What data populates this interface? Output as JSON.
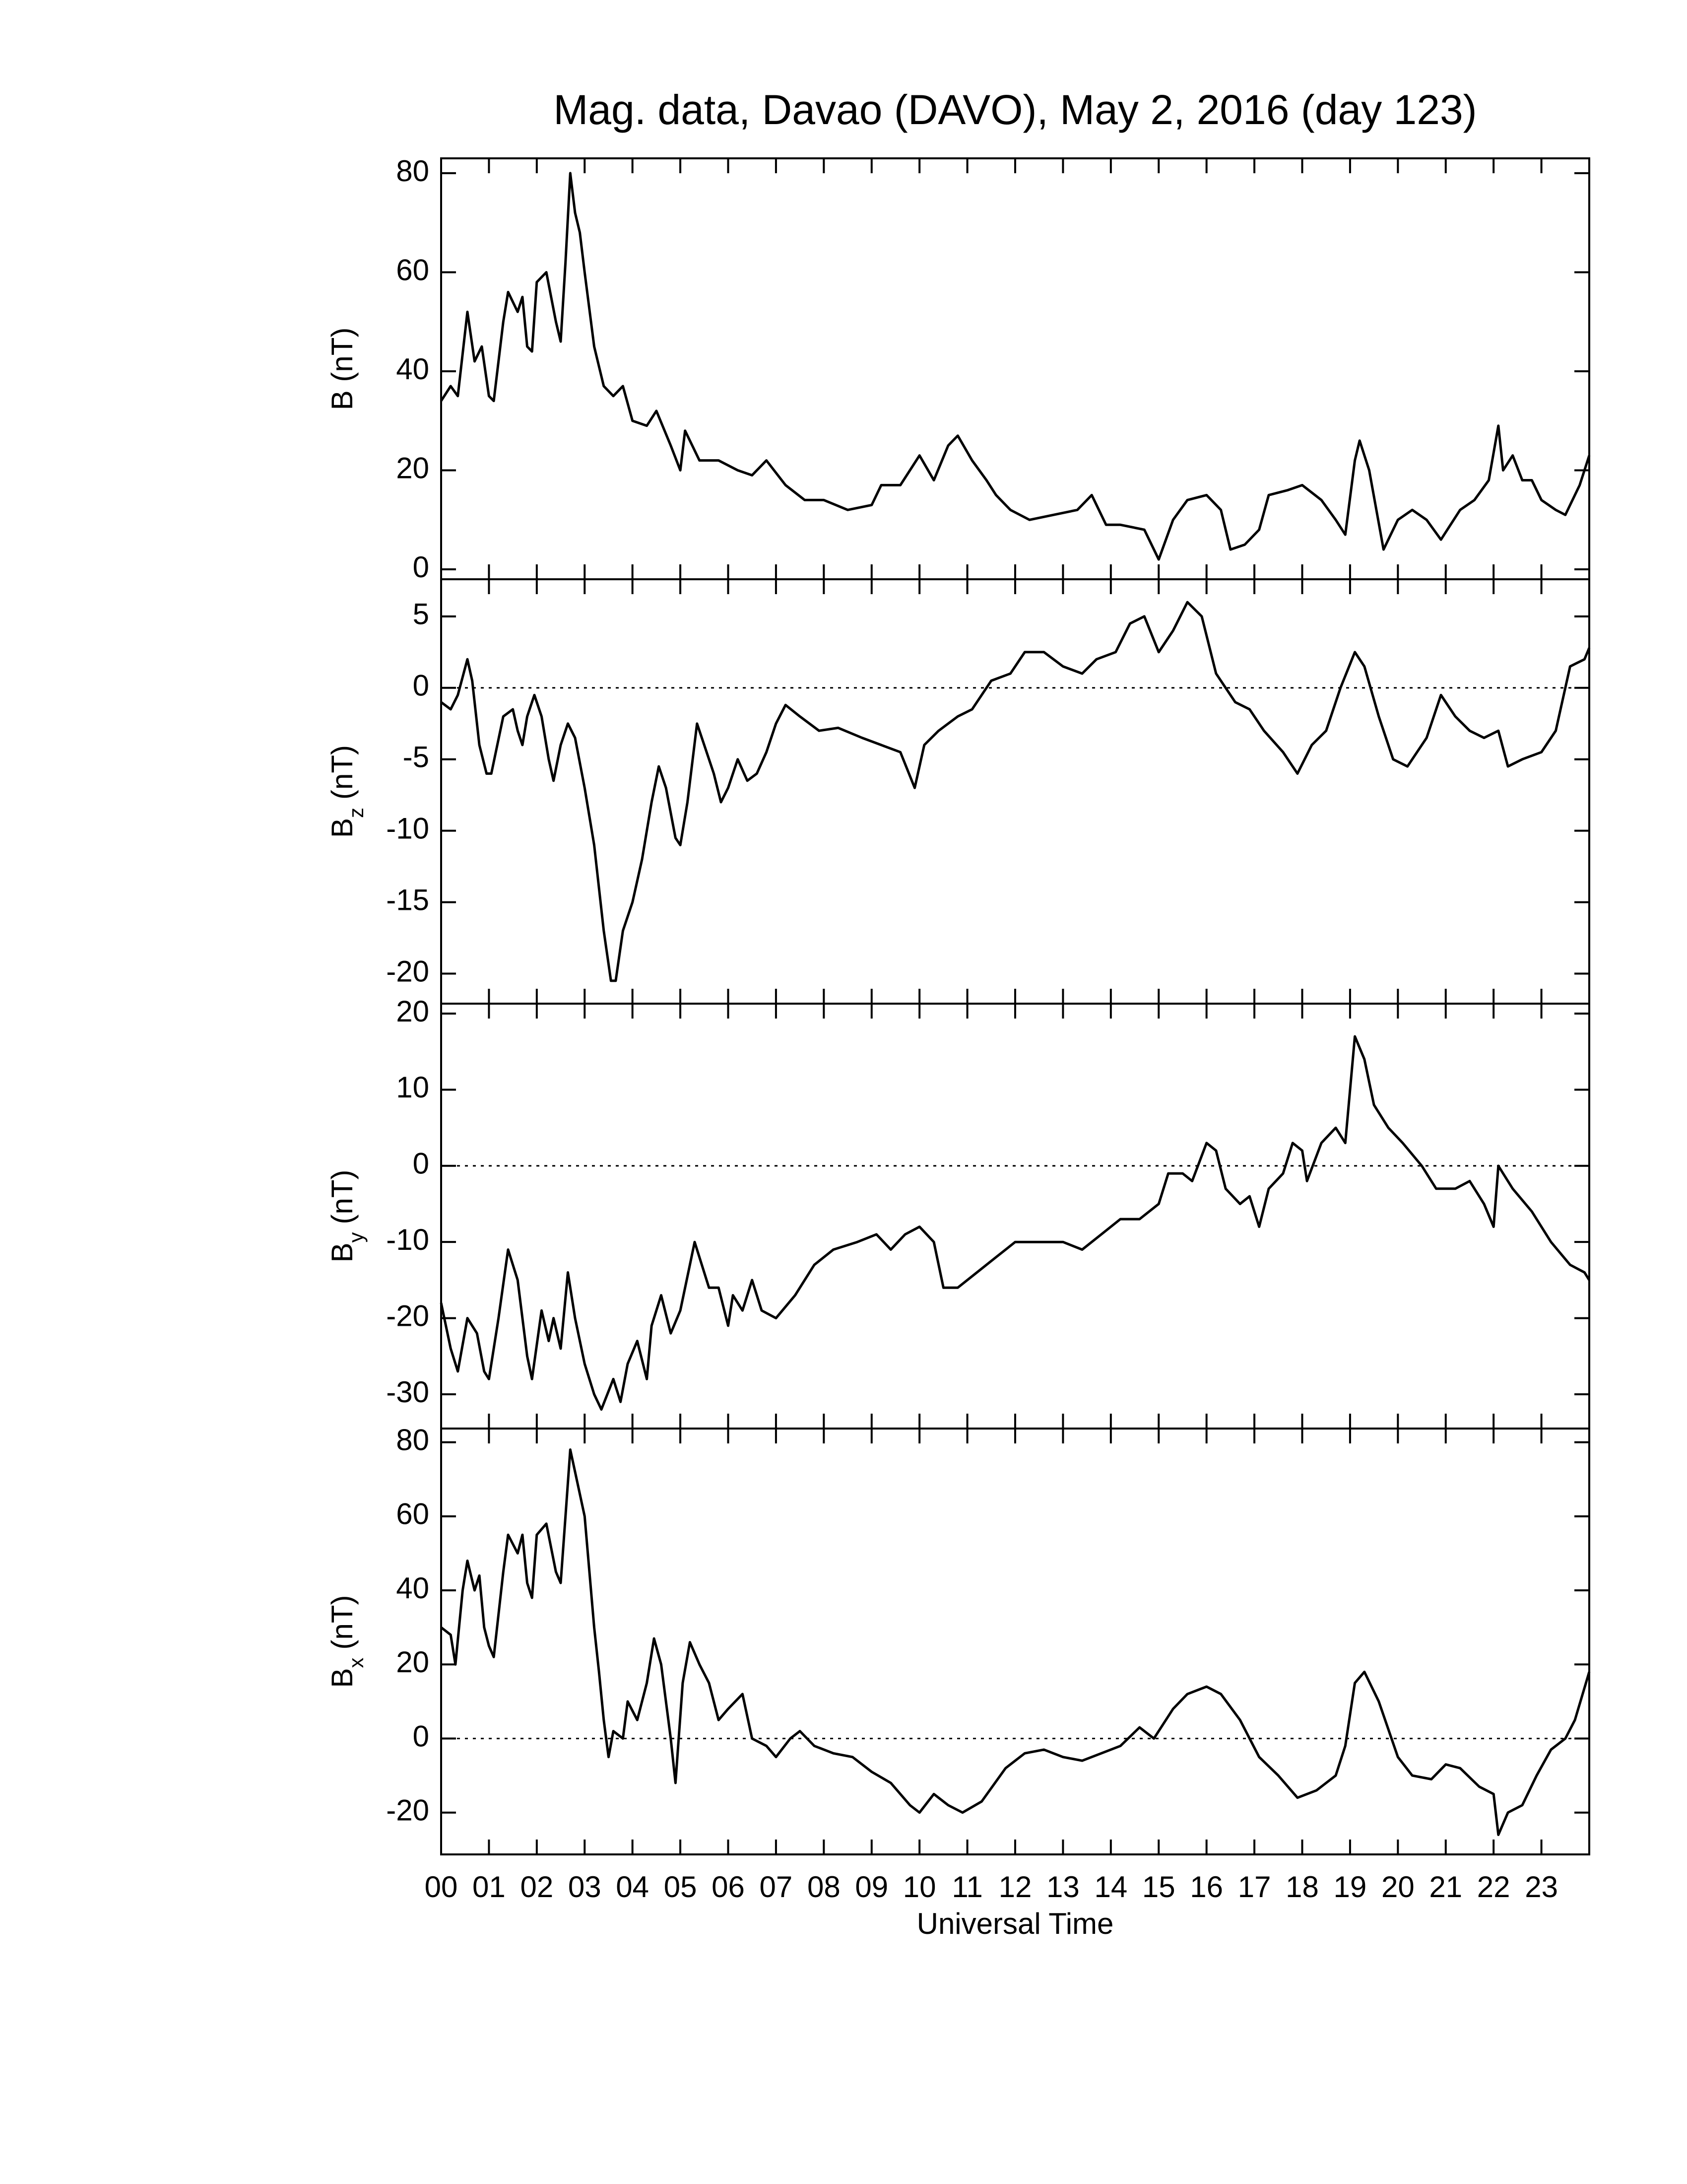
{
  "chart_data": [
    {
      "type": "line",
      "title": "Mag. data, Davao (DAVO), May 2, 2016 (day 123)",
      "ylabel": "B (nT)",
      "color": "#000000",
      "xlim": [
        0,
        24
      ],
      "xticks": [
        0,
        1,
        2,
        3,
        4,
        5,
        6,
        7,
        8,
        9,
        10,
        11,
        12,
        13,
        14,
        15,
        16,
        17,
        18,
        19,
        20,
        21,
        22,
        23
      ],
      "ylim": [
        -2,
        83
      ],
      "yticks": [
        0,
        20,
        40,
        60,
        80
      ],
      "x": [
        0,
        0.2,
        0.35,
        0.55,
        0.7,
        0.85,
        1,
        1.1,
        1.3,
        1.4,
        1.6,
        1.7,
        1.8,
        1.9,
        2,
        2.2,
        2.4,
        2.5,
        2.6,
        2.7,
        2.8,
        2.9,
        3,
        3.2,
        3.4,
        3.6,
        3.8,
        4,
        4.3,
        4.5,
        4.8,
        5,
        5.1,
        5.4,
        5.8,
        6.2,
        6.5,
        6.8,
        7.2,
        7.6,
        8,
        8.5,
        9,
        9.2,
        9.6,
        10,
        10.3,
        10.6,
        10.8,
        11.1,
        11.4,
        11.6,
        11.9,
        12.3,
        12.8,
        13.3,
        13.6,
        13.9,
        14.2,
        14.7,
        15,
        15.3,
        15.6,
        16,
        16.3,
        16.5,
        16.8,
        17.1,
        17.3,
        17.7,
        18,
        18.4,
        18.7,
        18.9,
        19.1,
        19.2,
        19.4,
        19.7,
        20,
        20.3,
        20.6,
        20.9,
        21.3,
        21.6,
        21.9,
        22.1,
        22.2,
        22.4,
        22.6,
        22.8,
        23,
        23.3,
        23.5,
        23.8,
        24
      ],
      "values": [
        34,
        37,
        35,
        52,
        42,
        45,
        35,
        34,
        50,
        56,
        52,
        55,
        45,
        44,
        58,
        60,
        50,
        46,
        62,
        80,
        72,
        68,
        60,
        45,
        37,
        35,
        37,
        30,
        29,
        32,
        25,
        20,
        28,
        22,
        22,
        20,
        19,
        22,
        17,
        14,
        14,
        12,
        13,
        17,
        17,
        23,
        18,
        25,
        27,
        22,
        18,
        15,
        12,
        10,
        11,
        12,
        15,
        9,
        9,
        8,
        2,
        10,
        14,
        15,
        12,
        4,
        5,
        8,
        15,
        16,
        17,
        14,
        10,
        7,
        22,
        26,
        20,
        4,
        10,
        12,
        10,
        6,
        12,
        14,
        18,
        29,
        20,
        23,
        18,
        18,
        14,
        12,
        11,
        17,
        23
      ]
    },
    {
      "type": "line",
      "ylabel": "B",
      "ylabel_subscript": "z",
      "ylabel_unit": "(nT)",
      "color": "#000000",
      "reference_line": 0,
      "xlim": [
        0,
        24
      ],
      "xticks": [
        0,
        1,
        2,
        3,
        4,
        5,
        6,
        7,
        8,
        9,
        10,
        11,
        12,
        13,
        14,
        15,
        16,
        17,
        18,
        19,
        20,
        21,
        22,
        23
      ],
      "ylim": [
        -22.1,
        7.6
      ],
      "yticks": [
        -20,
        -15,
        -10,
        -5,
        0,
        5
      ],
      "x": [
        0,
        0.2,
        0.35,
        0.55,
        0.65,
        0.8,
        0.95,
        1.05,
        1.3,
        1.5,
        1.6,
        1.7,
        1.8,
        1.95,
        2.1,
        2.25,
        2.35,
        2.5,
        2.65,
        2.8,
        3,
        3.2,
        3.4,
        3.55,
        3.65,
        3.8,
        4,
        4.2,
        4.4,
        4.55,
        4.7,
        4.9,
        5,
        5.15,
        5.35,
        5.5,
        5.7,
        5.85,
        6,
        6.2,
        6.4,
        6.6,
        6.8,
        7,
        7.2,
        7.5,
        7.9,
        8.3,
        8.8,
        9.2,
        9.6,
        9.9,
        10.1,
        10.4,
        10.8,
        11.1,
        11.5,
        11.9,
        12.2,
        12.6,
        13,
        13.4,
        13.7,
        14.1,
        14.4,
        14.7,
        15,
        15.3,
        15.6,
        15.9,
        16.2,
        16.6,
        16.9,
        17.2,
        17.6,
        17.9,
        18.2,
        18.5,
        18.8,
        19.1,
        19.3,
        19.6,
        19.9,
        20.2,
        20.6,
        20.9,
        21.2,
        21.5,
        21.8,
        22.1,
        22.3,
        22.6,
        23,
        23.3,
        23.6,
        23.9,
        24
      ],
      "values": [
        -1,
        -1.5,
        -0.5,
        2,
        0.5,
        -4,
        -6,
        -6,
        -2,
        -1.5,
        -3,
        -4,
        -2,
        -0.5,
        -2,
        -5,
        -6.5,
        -4,
        -2.5,
        -3.5,
        -7,
        -11,
        -17,
        -20.5,
        -20.5,
        -17,
        -15,
        -12,
        -8,
        -5.5,
        -7,
        -10.5,
        -11,
        -8,
        -2.5,
        -4,
        -6,
        -8,
        -7,
        -5,
        -6.5,
        -6,
        -4.5,
        -2.5,
        -1.2,
        -2,
        -3,
        -2.8,
        -3.5,
        -4,
        -4.5,
        -7,
        -4,
        -3,
        -2,
        -1.5,
        0.5,
        1,
        2.5,
        2.5,
        1.5,
        1,
        2,
        2.5,
        4.5,
        5,
        2.5,
        4,
        6,
        5,
        1,
        -1,
        -1.5,
        -3,
        -4.5,
        -6,
        -4,
        -3,
        0,
        2.5,
        1.5,
        -2,
        -5,
        -5.5,
        -3.5,
        -0.5,
        -2,
        -3,
        -3.5,
        -3,
        -5.5,
        -5,
        -4.5,
        -3,
        1.5,
        2,
        2.8
      ]
    },
    {
      "type": "line",
      "ylabel": "B",
      "ylabel_subscript": "y",
      "ylabel_unit": "(nT)",
      "color": "#000000",
      "reference_line": 0,
      "xlim": [
        0,
        24
      ],
      "xticks": [
        0,
        1,
        2,
        3,
        4,
        5,
        6,
        7,
        8,
        9,
        10,
        11,
        12,
        13,
        14,
        15,
        16,
        17,
        18,
        19,
        20,
        21,
        22,
        23
      ],
      "ylim": [
        -34.5,
        21.3
      ],
      "yticks": [
        -30,
        -20,
        -10,
        0,
        10,
        20
      ],
      "x": [
        0,
        0.2,
        0.35,
        0.55,
        0.75,
        0.9,
        1,
        1.2,
        1.4,
        1.6,
        1.8,
        1.9,
        2.1,
        2.25,
        2.35,
        2.5,
        2.65,
        2.8,
        3,
        3.2,
        3.35,
        3.6,
        3.75,
        3.9,
        4.1,
        4.3,
        4.4,
        4.6,
        4.8,
        5,
        5.2,
        5.3,
        5.6,
        5.8,
        6,
        6.1,
        6.3,
        6.5,
        6.7,
        7,
        7.4,
        7.8,
        8.2,
        8.7,
        9.1,
        9.4,
        9.7,
        10,
        10.3,
        10.5,
        10.8,
        11.2,
        11.6,
        12,
        12.5,
        13,
        13.4,
        13.8,
        14.2,
        14.6,
        15,
        15.2,
        15.5,
        15.7,
        16,
        16.2,
        16.4,
        16.7,
        16.9,
        17.1,
        17.3,
        17.6,
        17.8,
        18,
        18.1,
        18.4,
        18.7,
        18.9,
        19.1,
        19.3,
        19.5,
        19.8,
        20.1,
        20.5,
        20.8,
        21.2,
        21.5,
        21.8,
        22,
        22.1,
        22.4,
        22.8,
        23.2,
        23.6,
        23.9,
        24
      ],
      "values": [
        -18,
        -24,
        -27,
        -20,
        -22,
        -27,
        -28,
        -20,
        -11,
        -15,
        -25,
        -28,
        -19,
        -23,
        -20,
        -24,
        -14,
        -20,
        -26,
        -30,
        -32,
        -28,
        -31,
        -26,
        -23,
        -28,
        -21,
        -17,
        -22,
        -19,
        -13,
        -10,
        -16,
        -16,
        -21,
        -17,
        -19,
        -15,
        -19,
        -20,
        -17,
        -13,
        -11,
        -10,
        -9,
        -11,
        -9,
        -8,
        -10,
        -16,
        -16,
        -14,
        -12,
        -10,
        -10,
        -10,
        -11,
        -9,
        -7,
        -7,
        -5,
        -1,
        -1,
        -2,
        3,
        2,
        -3,
        -5,
        -4,
        -8,
        -3,
        -1,
        3,
        2,
        -2,
        3,
        5,
        3,
        17,
        14,
        8,
        5,
        3,
        0,
        -3,
        -3,
        -2,
        -5,
        -8,
        0,
        -3,
        -6,
        -10,
        -13,
        -14,
        -15
      ]
    },
    {
      "type": "line",
      "ylabel": "B",
      "ylabel_subscript": "x",
      "ylabel_unit": "(nT)",
      "xlabel": "Universal Time",
      "color": "#000000",
      "reference_line": 0,
      "xlim": [
        0,
        24
      ],
      "xticks": [
        {
          "value": 0,
          "label": "00"
        },
        {
          "value": 1,
          "label": "01"
        },
        {
          "value": 2,
          "label": "02"
        },
        {
          "value": 3,
          "label": "03"
        },
        {
          "value": 4,
          "label": "04"
        },
        {
          "value": 5,
          "label": "05"
        },
        {
          "value": 6,
          "label": "06"
        },
        {
          "value": 7,
          "label": "07"
        },
        {
          "value": 8,
          "label": "08"
        },
        {
          "value": 9,
          "label": "09"
        },
        10,
        11,
        12,
        13,
        14,
        15,
        16,
        17,
        18,
        19,
        20,
        21,
        22,
        23
      ],
      "ylim": [
        -31.3,
        83.7
      ],
      "yticks": [
        -20,
        0,
        20,
        40,
        60,
        80
      ],
      "x": [
        0,
        0.2,
        0.3,
        0.45,
        0.55,
        0.7,
        0.8,
        0.9,
        1,
        1.1,
        1.3,
        1.4,
        1.6,
        1.7,
        1.8,
        1.9,
        2,
        2.2,
        2.4,
        2.5,
        2.6,
        2.7,
        2.8,
        3,
        3.2,
        3.3,
        3.4,
        3.5,
        3.6,
        3.8,
        3.9,
        4.1,
        4.3,
        4.45,
        4.6,
        4.8,
        4.9,
        5.05,
        5.2,
        5.4,
        5.6,
        5.8,
        6,
        6.3,
        6.5,
        6.8,
        7,
        7.3,
        7.5,
        7.8,
        8.2,
        8.6,
        9,
        9.4,
        9.8,
        10,
        10.3,
        10.6,
        10.9,
        11.3,
        11.8,
        12.2,
        12.6,
        13,
        13.4,
        13.8,
        14.2,
        14.6,
        14.9,
        15.3,
        15.6,
        16,
        16.3,
        16.7,
        17.1,
        17.5,
        17.9,
        18.3,
        18.7,
        18.9,
        19.1,
        19.3,
        19.6,
        20,
        20.3,
        20.7,
        21,
        21.3,
        21.7,
        22,
        22.1,
        22.3,
        22.6,
        22.9,
        23.2,
        23.5,
        23.7,
        24
      ],
      "values": [
        30,
        28,
        20,
        40,
        48,
        40,
        44,
        30,
        25,
        22,
        45,
        55,
        50,
        55,
        42,
        38,
        55,
        58,
        45,
        42,
        60,
        78,
        72,
        60,
        30,
        18,
        5,
        -5,
        2,
        0,
        10,
        5,
        15,
        27,
        20,
        0,
        -12,
        15,
        26,
        20,
        15,
        5,
        8,
        12,
        0,
        -2,
        -5,
        0,
        2,
        -2,
        -4,
        -5,
        -9,
        -12,
        -18,
        -20,
        -15,
        -18,
        -20,
        -17,
        -8,
        -4,
        -3,
        -5,
        -6,
        -4,
        -2,
        3,
        0,
        8,
        12,
        14,
        12,
        5,
        -5,
        -10,
        -16,
        -14,
        -10,
        -2,
        15,
        18,
        10,
        -5,
        -10,
        -11,
        -7,
        -8,
        -13,
        -15,
        -26,
        -20,
        -18,
        -10,
        -3,
        0,
        5,
        18
      ]
    }
  ]
}
